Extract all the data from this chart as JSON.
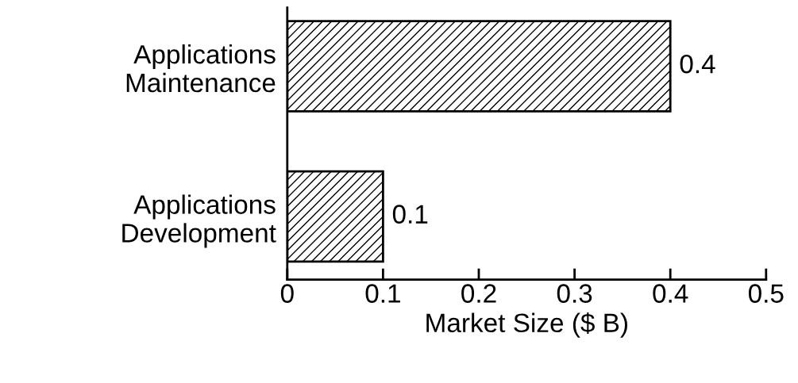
{
  "chart_data": {
    "type": "bar",
    "orientation": "horizontal",
    "categories": [
      "Applications\nMaintenance",
      "Applications\nDevelopment"
    ],
    "values": [
      0.4,
      0.1
    ],
    "color": "#000000",
    "xlabel": "Market Size ($ B)",
    "xlim": [
      0,
      0.5
    ],
    "xticks": [
      0,
      0.1,
      0.2,
      0.3,
      0.4,
      0.5
    ],
    "data_labels": true,
    "grid": false,
    "legend": false
  }
}
